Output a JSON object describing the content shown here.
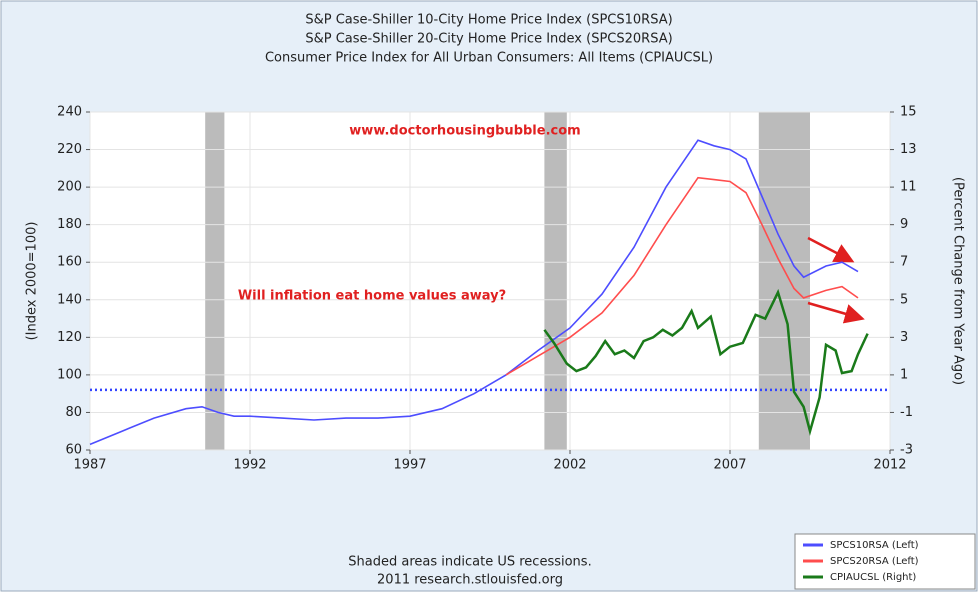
{
  "chart_data": {
    "type": "line",
    "title_lines": [
      "S&P Case-Shiller 10-City Home Price Index (SPCS10RSA)",
      "S&P Case-Shiller 20-City Home Price Index (SPCS20RSA)",
      "Consumer Price Index for All Urban Consumers: All Items (CPIAUCSL)"
    ],
    "ylabel": "(Index 2000=100)",
    "y2label": "(Percent Change from Year Ago)",
    "annotations": [
      "www.doctorhousingbubble.com",
      "Will inflation eat home values away?"
    ],
    "footnote": [
      "Shaded areas indicate US recessions.",
      "2011 research.stlouisfed.org"
    ],
    "xlim": [
      1987,
      2012
    ],
    "xticks": [
      1987,
      1992,
      1997,
      2002,
      2007,
      2012
    ],
    "ylim": [
      60,
      240
    ],
    "yticks": [
      60,
      80,
      100,
      120,
      140,
      160,
      180,
      200,
      220,
      240
    ],
    "y2lim": [
      -3,
      15
    ],
    "y2ticks": [
      -3,
      -1,
      1,
      3,
      5,
      7,
      9,
      11,
      13,
      15
    ],
    "grid": true,
    "legend": "lower right",
    "recessions": [
      [
        1990.6,
        1991.2
      ],
      [
        2001.2,
        2001.9
      ],
      [
        2007.9,
        2009.5
      ]
    ],
    "reference_line": 92,
    "series": [
      {
        "name": "SPCS10RSA (Left)",
        "color": "#4d4dff",
        "x": [
          1987,
          1988,
          1989,
          1990,
          1990.5,
          1991,
          1991.5,
          1992,
          1993,
          1994,
          1995,
          1996,
          1997,
          1998,
          1999,
          2000,
          2001,
          2002,
          2003,
          2004,
          2005,
          2006,
          2006.5,
          2007,
          2007.5,
          2008,
          2008.5,
          2009,
          2009.3,
          2010,
          2010.5,
          2011
        ],
        "values": [
          63,
          70,
          77,
          82,
          83,
          80,
          78,
          78,
          77,
          76,
          77,
          77,
          78,
          82,
          90,
          100,
          113,
          125,
          143,
          168,
          200,
          225,
          222,
          220,
          215,
          195,
          175,
          158,
          152,
          158,
          160,
          155
        ]
      },
      {
        "name": "SPCS20RSA (Left)",
        "color": "#ff4d4d",
        "x": [
          2000,
          2001,
          2002,
          2003,
          2004,
          2005,
          2006,
          2006.5,
          2007,
          2007.5,
          2008,
          2008.5,
          2009,
          2009.3,
          2010,
          2010.5,
          2011
        ],
        "values": [
          100,
          110,
          120,
          133,
          153,
          180,
          205,
          204,
          203,
          197,
          180,
          162,
          146,
          141,
          145,
          147,
          141
        ]
      },
      {
        "name": "CPIAUCSL (Right)",
        "color": "#1a7a1a",
        "axis": "y2",
        "x": [
          2001.2,
          2001.5,
          2001.9,
          2002.2,
          2002.5,
          2002.8,
          2003.1,
          2003.4,
          2003.7,
          2004,
          2004.3,
          2004.6,
          2004.9,
          2005.2,
          2005.5,
          2005.8,
          2006,
          2006.4,
          2006.7,
          2007,
          2007.4,
          2007.8,
          2008.1,
          2008.5,
          2008.8,
          2009,
          2009.3,
          2009.5,
          2009.8,
          2010,
          2010.3,
          2010.5,
          2010.8,
          2011,
          2011.3
        ],
        "values": [
          3.4,
          2.7,
          1.6,
          1.2,
          1.4,
          2.0,
          2.8,
          2.1,
          2.3,
          1.9,
          2.8,
          3.0,
          3.4,
          3.1,
          3.5,
          4.4,
          3.5,
          4.1,
          2.1,
          2.5,
          2.7,
          4.2,
          4.0,
          5.4,
          3.7,
          0.1,
          -0.7,
          -2.0,
          -0.2,
          2.6,
          2.3,
          1.1,
          1.2,
          2.1,
          3.2
        ]
      }
    ]
  }
}
